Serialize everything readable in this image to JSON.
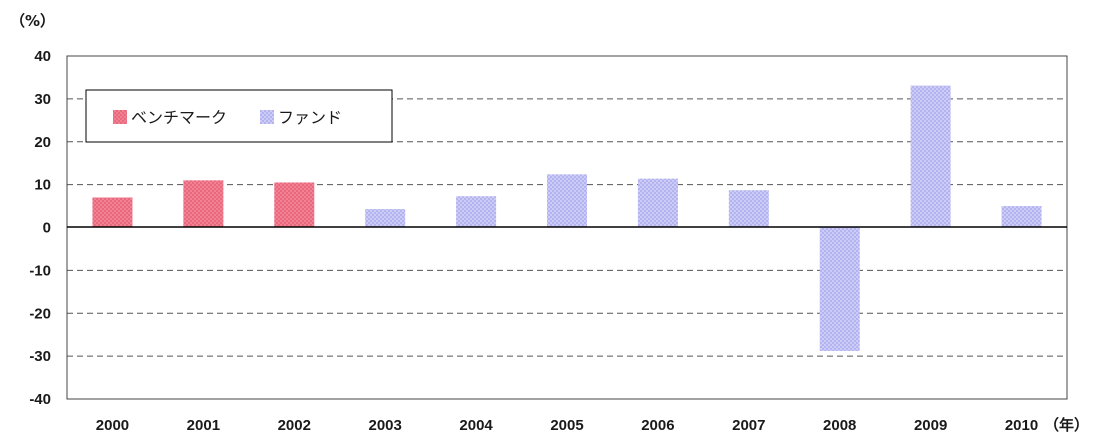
{
  "chart_data": {
    "type": "bar",
    "y_unit_label": "（%）",
    "x_unit_label": "（年）",
    "categories": [
      "2000",
      "2001",
      "2002",
      "2003",
      "2004",
      "2005",
      "2006",
      "2007",
      "2008",
      "2009",
      "2010"
    ],
    "values": [
      7,
      11,
      10.5,
      4.3,
      7.3,
      12.4,
      11.4,
      8.7,
      -28.8,
      33.1,
      5
    ],
    "series_kind": [
      "benchmark",
      "benchmark",
      "benchmark",
      "fund",
      "fund",
      "fund",
      "fund",
      "fund",
      "fund",
      "fund",
      "fund"
    ],
    "legend": [
      {
        "key": "benchmark",
        "label": "ベンチマーク",
        "color": "#ea6e83"
      },
      {
        "key": "fund",
        "label": "ファンド",
        "color": "#b9b9f2"
      }
    ],
    "ylim": [
      -40,
      40
    ],
    "yticks": [
      -40,
      -30,
      -20,
      -10,
      0,
      10,
      20,
      30,
      40
    ],
    "grid": "dashed horizontal",
    "legend_position": "top-left"
  }
}
